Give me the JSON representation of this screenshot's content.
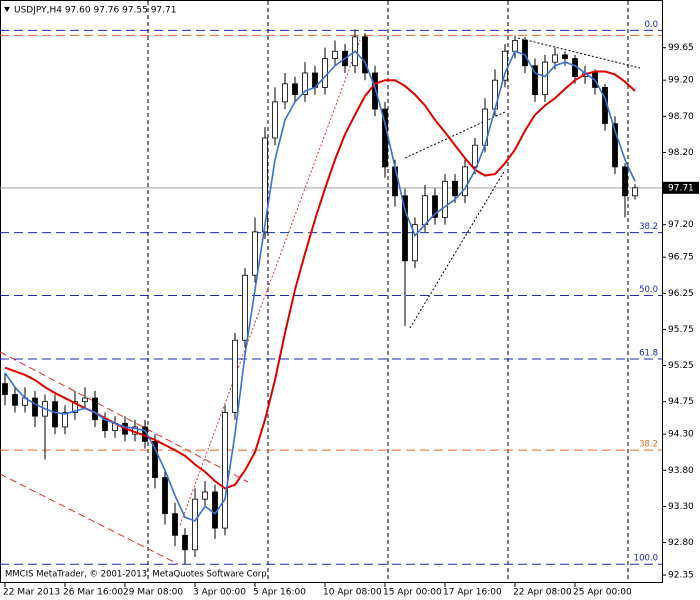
{
  "chart_data": {
    "type": "candlestick",
    "title": "USDJPY,H4  97.60 97.76 97.55 97.71",
    "footer": "MMCIS MetaTrader, © 2001-2013, MetaQuotes Software Corp.",
    "categories": [
      "22 Mar 2013",
      null,
      null,
      null,
      null,
      null,
      "26 Mar 16:00",
      null,
      null,
      null,
      null,
      null,
      "29 Mar 08:00",
      null,
      null,
      null,
      null,
      null,
      null,
      "3 Apr 00:00",
      null,
      null,
      null,
      null,
      null,
      "5 Apr 16:00",
      null,
      null,
      null,
      null,
      null,
      null,
      "10 Apr 08:00",
      null,
      null,
      null,
      null,
      null,
      "15 Apr 00:00",
      null,
      null,
      null,
      null,
      null,
      "17 Apr 16:00",
      null,
      null,
      null,
      null,
      null,
      null,
      "22 Apr 08:00",
      null,
      null,
      null,
      null,
      null,
      "25 Apr 00:00",
      null,
      null,
      null,
      null,
      null,
      null
    ],
    "open": [
      95.0,
      94.85,
      94.7,
      94.8,
      94.55,
      94.75,
      94.4,
      94.6,
      94.75,
      94.8,
      94.5,
      94.35,
      94.45,
      94.3,
      94.4,
      94.2,
      93.7,
      93.2,
      92.9,
      92.7,
      93.4,
      93.5,
      93.0,
      94.6,
      95.6,
      96.5,
      97.1,
      98.4,
      98.9,
      99.15,
      99.0,
      99.3,
      99.1,
      99.5,
      99.6,
      99.4,
      99.8,
      99.3,
      98.8,
      98.0,
      97.6,
      96.7,
      97.2,
      97.6,
      97.3,
      97.8,
      97.6,
      98.0,
      98.3,
      98.8,
      99.2,
      99.6,
      99.75,
      99.4,
      99.0,
      99.45,
      99.55,
      99.5,
      99.25,
      99.3,
      99.1,
      98.6,
      98.0,
      97.6
    ],
    "high": [
      95.15,
      94.95,
      94.95,
      94.9,
      94.85,
      94.85,
      94.7,
      94.9,
      94.95,
      94.9,
      94.6,
      94.55,
      94.55,
      94.5,
      94.5,
      94.3,
      93.8,
      93.35,
      93.0,
      93.55,
      93.65,
      93.6,
      94.7,
      95.7,
      96.6,
      97.3,
      98.55,
      99.1,
      99.3,
      99.25,
      99.45,
      99.4,
      99.65,
      99.75,
      99.7,
      99.9,
      99.85,
      99.4,
      98.9,
      98.1,
      97.7,
      97.3,
      97.75,
      97.7,
      97.9,
      97.9,
      98.1,
      98.4,
      98.95,
      99.35,
      99.7,
      99.82,
      99.8,
      99.5,
      99.55,
      99.65,
      99.6,
      99.55,
      99.4,
      99.35,
      99.15,
      98.7,
      98.05,
      97.76
    ],
    "low": [
      94.7,
      94.6,
      94.6,
      94.4,
      93.95,
      94.3,
      94.3,
      94.5,
      94.65,
      94.4,
      94.25,
      94.25,
      94.2,
      94.2,
      94.1,
      93.55,
      93.05,
      92.75,
      92.5,
      92.6,
      93.3,
      92.85,
      92.9,
      94.5,
      95.5,
      96.4,
      97.0,
      98.3,
      98.8,
      98.9,
      98.9,
      99.0,
      99.0,
      99.4,
      99.3,
      99.3,
      99.2,
      98.7,
      97.85,
      97.45,
      95.8,
      96.6,
      97.1,
      97.2,
      97.2,
      97.5,
      97.5,
      97.9,
      98.2,
      98.7,
      99.1,
      99.5,
      99.3,
      98.9,
      98.9,
      99.35,
      99.4,
      99.15,
      99.15,
      99.0,
      98.5,
      97.9,
      97.3,
      97.55
    ],
    "close": [
      94.85,
      94.7,
      94.8,
      94.55,
      94.75,
      94.4,
      94.6,
      94.75,
      94.8,
      94.5,
      94.35,
      94.45,
      94.3,
      94.4,
      94.2,
      93.7,
      93.2,
      92.9,
      92.7,
      93.4,
      93.5,
      93.0,
      94.6,
      95.6,
      96.5,
      97.1,
      98.4,
      98.9,
      99.15,
      99.0,
      99.3,
      99.1,
      99.5,
      99.6,
      99.4,
      99.8,
      99.3,
      98.8,
      98.0,
      97.6,
      96.7,
      97.2,
      97.6,
      97.3,
      97.8,
      97.6,
      98.0,
      98.3,
      98.8,
      99.2,
      99.6,
      99.75,
      99.4,
      99.0,
      99.45,
      99.55,
      99.5,
      99.25,
      99.3,
      99.1,
      98.6,
      98.0,
      97.6,
      97.71
    ],
    "up_color": "#ffffff",
    "down_color": "#000000",
    "lines": [
      {
        "color": "#e00000",
        "values": [
          95.22,
          95.17,
          95.12,
          95.05,
          94.95,
          94.87,
          94.8,
          94.73,
          94.66,
          94.6,
          94.52,
          94.45,
          94.38,
          94.33,
          94.28,
          94.22,
          94.15,
          94.08,
          94.0,
          93.88,
          93.78,
          93.65,
          93.55,
          93.6,
          93.8,
          94.05,
          94.5,
          95.05,
          95.7,
          96.3,
          96.8,
          97.27,
          97.7,
          98.1,
          98.45,
          98.72,
          98.98,
          99.15,
          99.2,
          99.2,
          99.12,
          99.0,
          98.85,
          98.65,
          98.48,
          98.3,
          98.12,
          97.96,
          97.88,
          97.9,
          98.05,
          98.24,
          98.5,
          98.72,
          98.85,
          98.95,
          99.08,
          99.2,
          99.28,
          99.32,
          99.32,
          99.28,
          99.18,
          99.05
        ]
      },
      {
        "color": "#3a6fd8",
        "values": [
          95.15,
          94.95,
          94.8,
          94.72,
          94.65,
          94.6,
          94.58,
          94.62,
          94.66,
          94.6,
          94.5,
          94.45,
          94.4,
          94.38,
          94.35,
          94.1,
          93.8,
          93.45,
          93.15,
          93.1,
          93.3,
          93.2,
          93.4,
          94.3,
          95.4,
          96.3,
          97.2,
          98.1,
          98.65,
          98.9,
          99.05,
          99.1,
          99.25,
          99.4,
          99.5,
          99.6,
          99.45,
          99.1,
          98.6,
          98.0,
          97.4,
          97.05,
          97.2,
          97.35,
          97.45,
          97.55,
          97.7,
          97.95,
          98.3,
          98.8,
          99.3,
          99.6,
          99.55,
          99.3,
          99.25,
          99.4,
          99.45,
          99.4,
          99.3,
          99.2,
          98.95,
          98.5,
          98.1,
          97.8
        ]
      }
    ],
    "levels": [
      {
        "value": 99.89,
        "label": "0.0",
        "color": "#1a2ab8"
      },
      {
        "value": 99.82,
        "color": "#e8692a"
      },
      {
        "value": 97.09,
        "label": "38.2",
        "color": "#1a2ab8"
      },
      {
        "value": 96.22,
        "label": "50.0",
        "color": "#1a2ab8"
      },
      {
        "value": 95.34,
        "label": "61.8",
        "color": "#1a2ab8"
      },
      {
        "value": 94.08,
        "label": "38.2",
        "color": "#e8692a"
      },
      {
        "value": 92.5,
        "label": "100.0",
        "color": "#1a2ab8"
      }
    ],
    "last_price": 97.71,
    "ylim": [
      92.24,
      100.31
    ],
    "yticks": [
      99.65,
      {
        "value": 99.2,
        "label": "99.20"
      },
      {
        "value": 98.7,
        "label": "98.70"
      },
      {
        "value": 98.2,
        "label": "98.20"
      },
      {
        "value": 97.2,
        "label": "97.20"
      },
      96.75,
      96.25,
      95.75,
      95.25,
      94.75,
      {
        "value": 94.3,
        "label": "94.30"
      },
      {
        "value": 93.8,
        "label": "93.80"
      },
      {
        "value": 93.3,
        "label": "93.30"
      },
      {
        "value": 92.8,
        "label": "92.80"
      },
      92.35
    ],
    "grid": false
  }
}
